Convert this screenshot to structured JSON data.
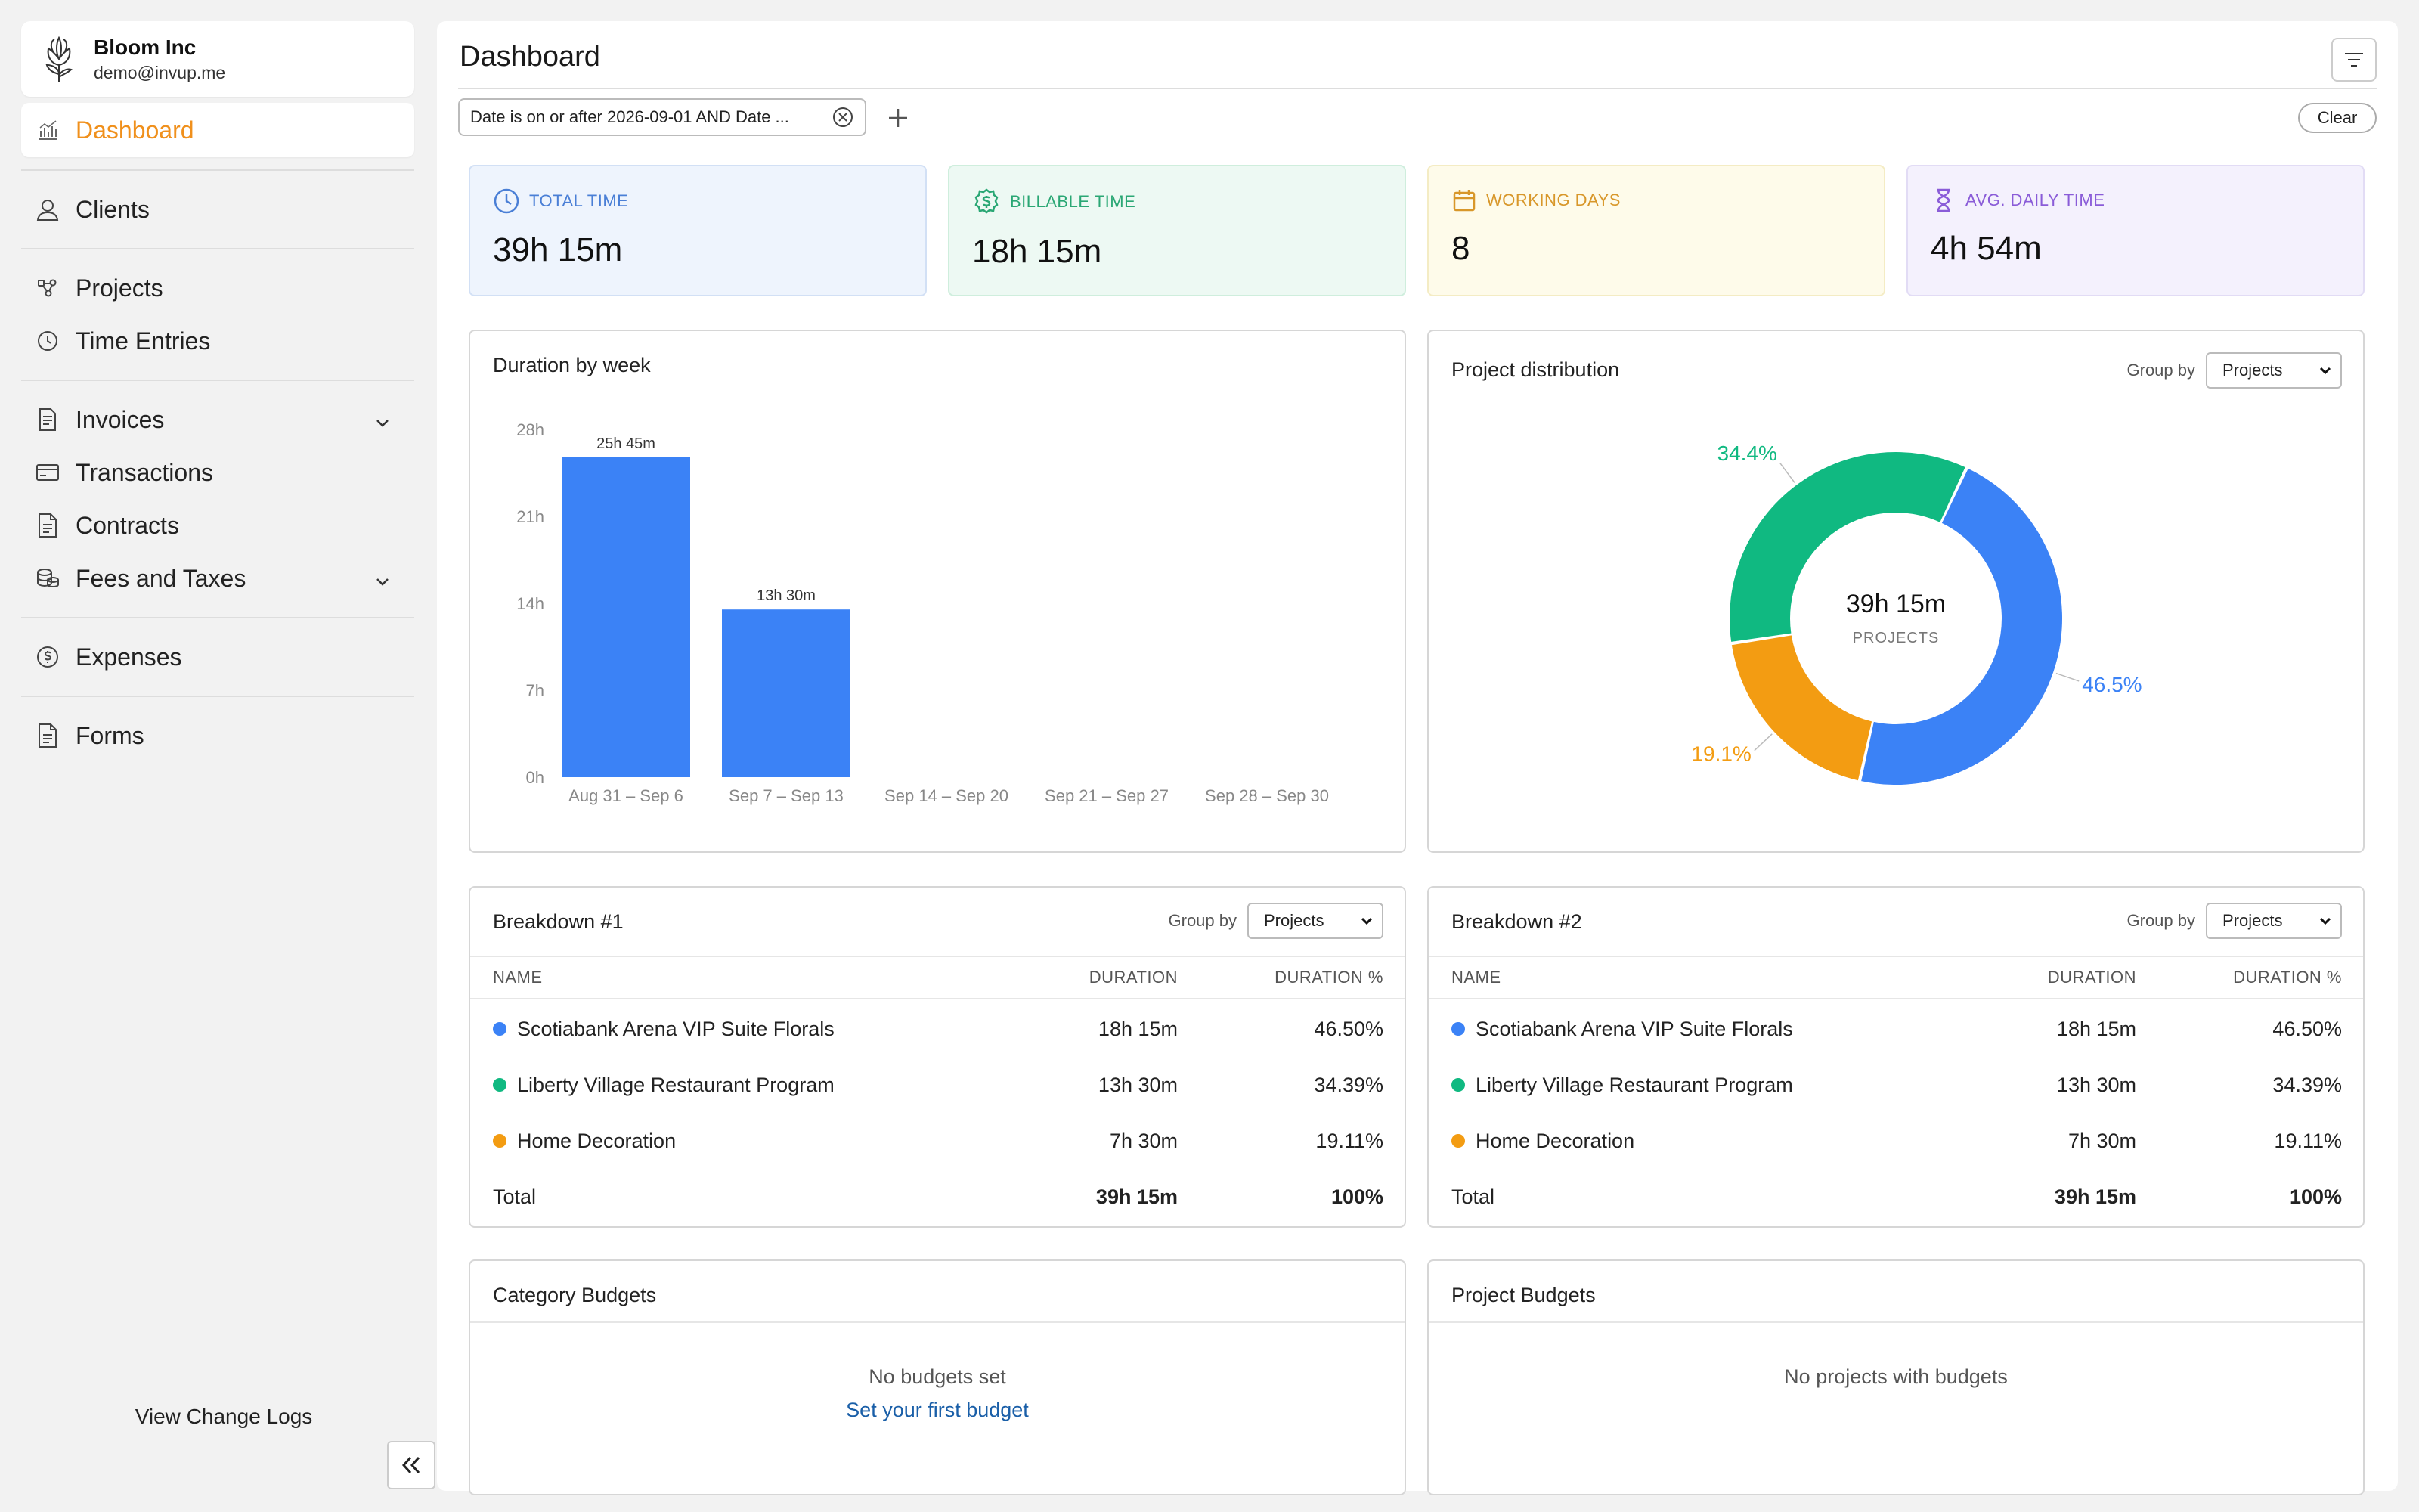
{
  "company": {
    "name": "Bloom Inc",
    "email": "demo@invup.me"
  },
  "nav": {
    "dashboard": "Dashboard",
    "clients": "Clients",
    "projects": "Projects",
    "time_entries": "Time Entries",
    "invoices": "Invoices",
    "transactions": "Transactions",
    "contracts": "Contracts",
    "fees_taxes": "Fees and Taxes",
    "expenses": "Expenses",
    "forms": "Forms"
  },
  "sidebar_footer": {
    "change_logs": "View Change Logs"
  },
  "header": {
    "title": "Dashboard"
  },
  "filter": {
    "chip_text": "Date is on or after 2026-09-01 AND Date ...",
    "clear_label": "Clear"
  },
  "stats": [
    {
      "label": "TOTAL TIME",
      "value": "39h 15m",
      "icon": "clock-icon",
      "color": "#4a7fd6"
    },
    {
      "label": "BILLABLE TIME",
      "value": "18h 15m",
      "icon": "dollar-badge-icon",
      "color": "#2aa774"
    },
    {
      "label": "WORKING DAYS",
      "value": "8",
      "icon": "calendar-icon",
      "color": "#d8972a"
    },
    {
      "label": "AVG. DAILY TIME",
      "value": "4h 54m",
      "icon": "hourglass-icon",
      "color": "#8a5cd8"
    }
  ],
  "duration_chart": {
    "title": "Duration by week",
    "y_ticks": [
      "28h",
      "21h",
      "14h",
      "7h",
      "0h"
    ],
    "bar_labels": [
      "25h 45m",
      "13h 30m"
    ]
  },
  "distribution": {
    "title": "Project distribution",
    "group_by_label": "Group by",
    "group_by_value": "Projects",
    "center_value": "39h 15m",
    "center_label": "PROJECTS",
    "slice_labels": [
      "46.5%",
      "19.1%",
      "34.4%"
    ]
  },
  "chart_data": [
    {
      "type": "bar",
      "title": "Duration by week",
      "categories": [
        "Aug 31 – Sep 6",
        "Sep 7 – Sep 13",
        "Sep 14 – Sep 20",
        "Sep 21 – Sep 27",
        "Sep 28 – Sep 30"
      ],
      "values": [
        25.75,
        13.5,
        0,
        0,
        0
      ],
      "ylim": [
        0,
        28
      ],
      "color": "#3b82f6"
    },
    {
      "type": "pie",
      "title": "Project distribution",
      "categories": [
        "Scotiabank Arena VIP Suite Florals",
        "Home Decoration",
        "Liberty Village Restaurant Program"
      ],
      "values": [
        46.5,
        19.1,
        34.4
      ],
      "colors": [
        "#3b82f6",
        "#f39c12",
        "#10b981"
      ]
    }
  ],
  "breakdowns": [
    {
      "title": "Breakdown #1",
      "group_by_label": "Group by",
      "group_by_value": "Projects",
      "headers": {
        "name": "NAME",
        "duration": "DURATION",
        "pct": "DURATION %"
      },
      "rows": [
        {
          "name": "Scotiabank Arena VIP Suite Florals",
          "duration": "18h 15m",
          "pct": "46.50%",
          "color": "#3b82f6"
        },
        {
          "name": "Liberty Village Restaurant Program",
          "duration": "13h 30m",
          "pct": "34.39%",
          "color": "#10b981"
        },
        {
          "name": "Home Decoration",
          "duration": "7h 30m",
          "pct": "19.11%",
          "color": "#f39c12"
        }
      ],
      "total": {
        "name": "Total",
        "duration": "39h 15m",
        "pct": "100%"
      }
    },
    {
      "title": "Breakdown #2",
      "group_by_label": "Group by",
      "group_by_value": "Projects",
      "headers": {
        "name": "NAME",
        "duration": "DURATION",
        "pct": "DURATION %"
      },
      "rows": [
        {
          "name": "Scotiabank Arena VIP Suite Florals",
          "duration": "18h 15m",
          "pct": "46.50%",
          "color": "#3b82f6"
        },
        {
          "name": "Liberty Village Restaurant Program",
          "duration": "13h 30m",
          "pct": "34.39%",
          "color": "#10b981"
        },
        {
          "name": "Home Decoration",
          "duration": "7h 30m",
          "pct": "19.11%",
          "color": "#f39c12"
        }
      ],
      "total": {
        "name": "Total",
        "duration": "39h 15m",
        "pct": "100%"
      }
    }
  ],
  "category_budgets": {
    "title": "Category Budgets",
    "empty": "No budgets set",
    "link": "Set your first budget"
  },
  "project_budgets": {
    "title": "Project Budgets",
    "empty": "No projects with budgets"
  }
}
